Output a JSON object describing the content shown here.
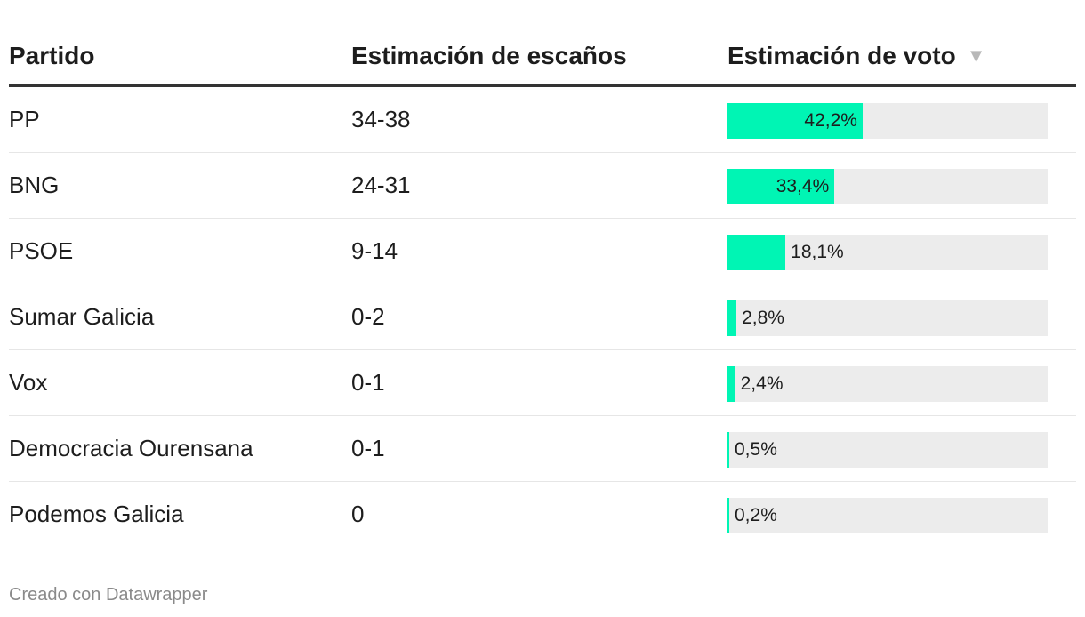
{
  "columns": {
    "party": "Partido",
    "seats": "Estimación de escaños",
    "vote": "Estimación de voto",
    "sort_icon": "▼"
  },
  "footer": "Creado con Datawrapper",
  "colors": {
    "bar": "#00f5b4",
    "track": "#ececec"
  },
  "chart_data": {
    "type": "table",
    "columns": [
      "Partido",
      "Estimación de escaños",
      "Estimación de voto"
    ],
    "max_value": 100,
    "rows": [
      {
        "party": "PP",
        "seats": "34-38",
        "vote": 42.2,
        "vote_label": "42,2%"
      },
      {
        "party": "BNG",
        "seats": "24-31",
        "vote": 33.4,
        "vote_label": "33,4%"
      },
      {
        "party": "PSOE",
        "seats": "9-14",
        "vote": 18.1,
        "vote_label": "18,1%"
      },
      {
        "party": "Sumar Galicia",
        "seats": "0-2",
        "vote": 2.8,
        "vote_label": "2,8%"
      },
      {
        "party": "Vox",
        "seats": "0-1",
        "vote": 2.4,
        "vote_label": "2,4%"
      },
      {
        "party": "Democracia Ourensana",
        "seats": "0-1",
        "vote": 0.5,
        "vote_label": "0,5%"
      },
      {
        "party": "Podemos Galicia",
        "seats": "0",
        "vote": 0.2,
        "vote_label": "0,2%"
      }
    ]
  }
}
